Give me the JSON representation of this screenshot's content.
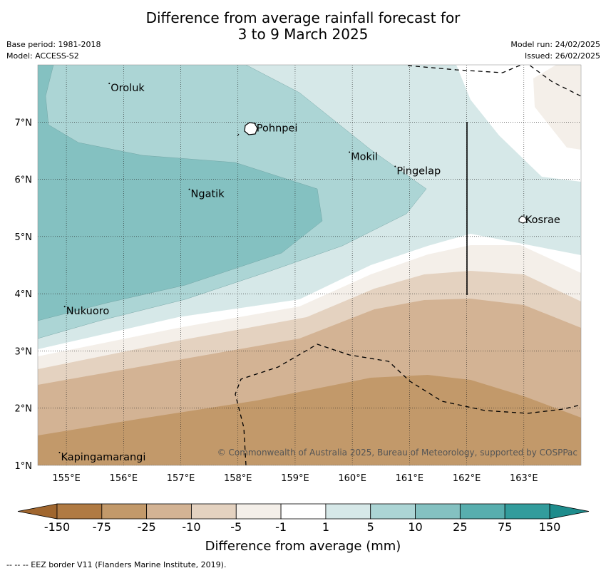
{
  "title_line1": "Difference from average rainfall forecast for",
  "title_line2": "3 to 9 March 2025",
  "base_period": "Base period: 1981-2018",
  "model": "Model: ACCESS-S2",
  "model_run": "Model run: 24/02/2025",
  "issued": "Issued: 26/02/2025",
  "copyright": "© Commonwealth of Australia 2025, Bureau of Meteorology, supported by COSPPac",
  "colorbar_label": "Difference from average (mm)",
  "footnote": "--  --  -- EEZ border V11 (Flanders Marine Institute, 2019).",
  "places": [
    {
      "name": "Oroluk",
      "lon": 155.75,
      "lat": 7.6
    },
    {
      "name": "Pohnpei",
      "lon": 158.3,
      "lat": 6.9
    },
    {
      "name": "Mokil",
      "lon": 159.95,
      "lat": 6.4
    },
    {
      "name": "Pingelap",
      "lon": 160.75,
      "lat": 6.15
    },
    {
      "name": "Ngatik",
      "lon": 157.15,
      "lat": 5.75
    },
    {
      "name": "Kosrae",
      "lon": 163.0,
      "lat": 5.3
    },
    {
      "name": "Nukuoro",
      "lon": 154.97,
      "lat": 3.7
    },
    {
      "name": "Kapingamarangi",
      "lon": 154.88,
      "lat": 1.15
    }
  ],
  "axes": {
    "lon_ticks": [
      "155°E",
      "156°E",
      "157°E",
      "158°E",
      "159°E",
      "160°E",
      "161°E",
      "162°E",
      "163°E"
    ],
    "lat_ticks": [
      "1°N",
      "2°N",
      "3°N",
      "4°N",
      "5°N",
      "6°N",
      "7°N"
    ],
    "lon_range": [
      154.5,
      164.0
    ],
    "lat_range": [
      1.0,
      8.0
    ]
  },
  "colorbar": {
    "ticks": [
      "-150",
      "-75",
      "-25",
      "-10",
      "-5",
      "-1",
      "1",
      "5",
      "10",
      "25",
      "75",
      "150"
    ],
    "colors": [
      "#b07a43",
      "#c2996a",
      "#d3b394",
      "#e4d2c0",
      "#f4efe9",
      "#ffffff",
      "#d6e8e8",
      "#acd5d5",
      "#84c1c1",
      "#58aeae",
      "#329c9c"
    ],
    "extend_low_color": "#a0662e",
    "extend_high_color": "#1e8c8c"
  }
}
